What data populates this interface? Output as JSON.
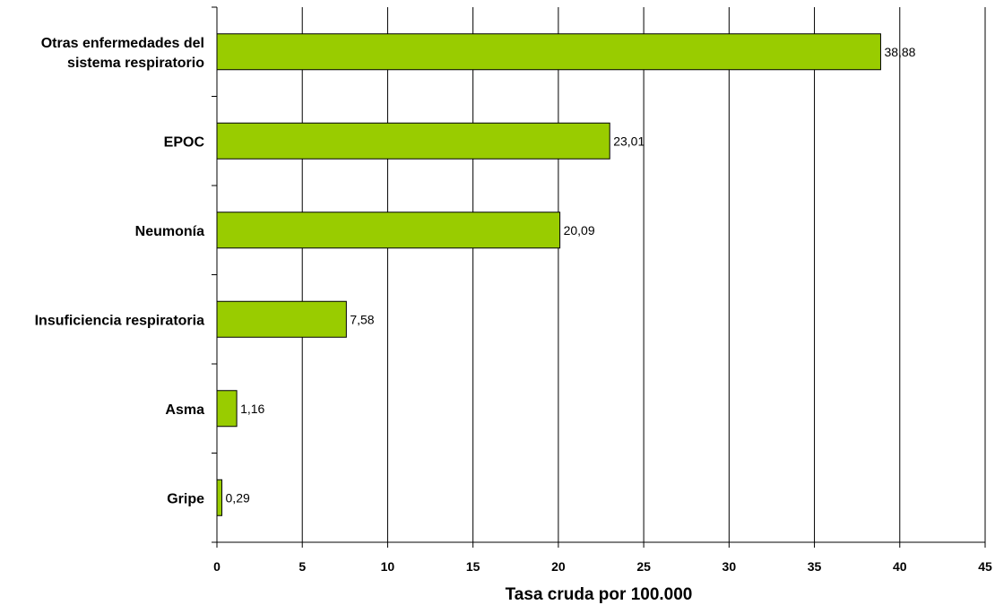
{
  "chart_data": {
    "type": "bar",
    "orientation": "horizontal",
    "title": "",
    "xlabel": "Tasa cruda por 100.000",
    "ylabel": "",
    "xlim": [
      0,
      45
    ],
    "xticks": [
      0,
      5,
      10,
      15,
      20,
      25,
      30,
      35,
      40,
      45
    ],
    "xtick_labels": [
      "0",
      "5",
      "10",
      "15",
      "20",
      "25",
      "30",
      "35",
      "40",
      "45"
    ],
    "grid": "vertical",
    "legend": "none",
    "bar_color": "#99cc00",
    "bar_edge_color": "#000000",
    "categories": [
      [
        "Otras enfermedades del",
        "sistema respiratorio"
      ],
      [
        "EPOC"
      ],
      [
        "Neumonía"
      ],
      [
        "Insuficiencia respiratoria"
      ],
      [
        "Asma"
      ],
      [
        "Gripe"
      ]
    ],
    "values": [
      38.88,
      23.01,
      20.09,
      7.58,
      1.16,
      0.29
    ],
    "value_labels": [
      "38,88",
      "23,01",
      "20,09",
      "7,58",
      "1,16",
      "0,29"
    ]
  }
}
